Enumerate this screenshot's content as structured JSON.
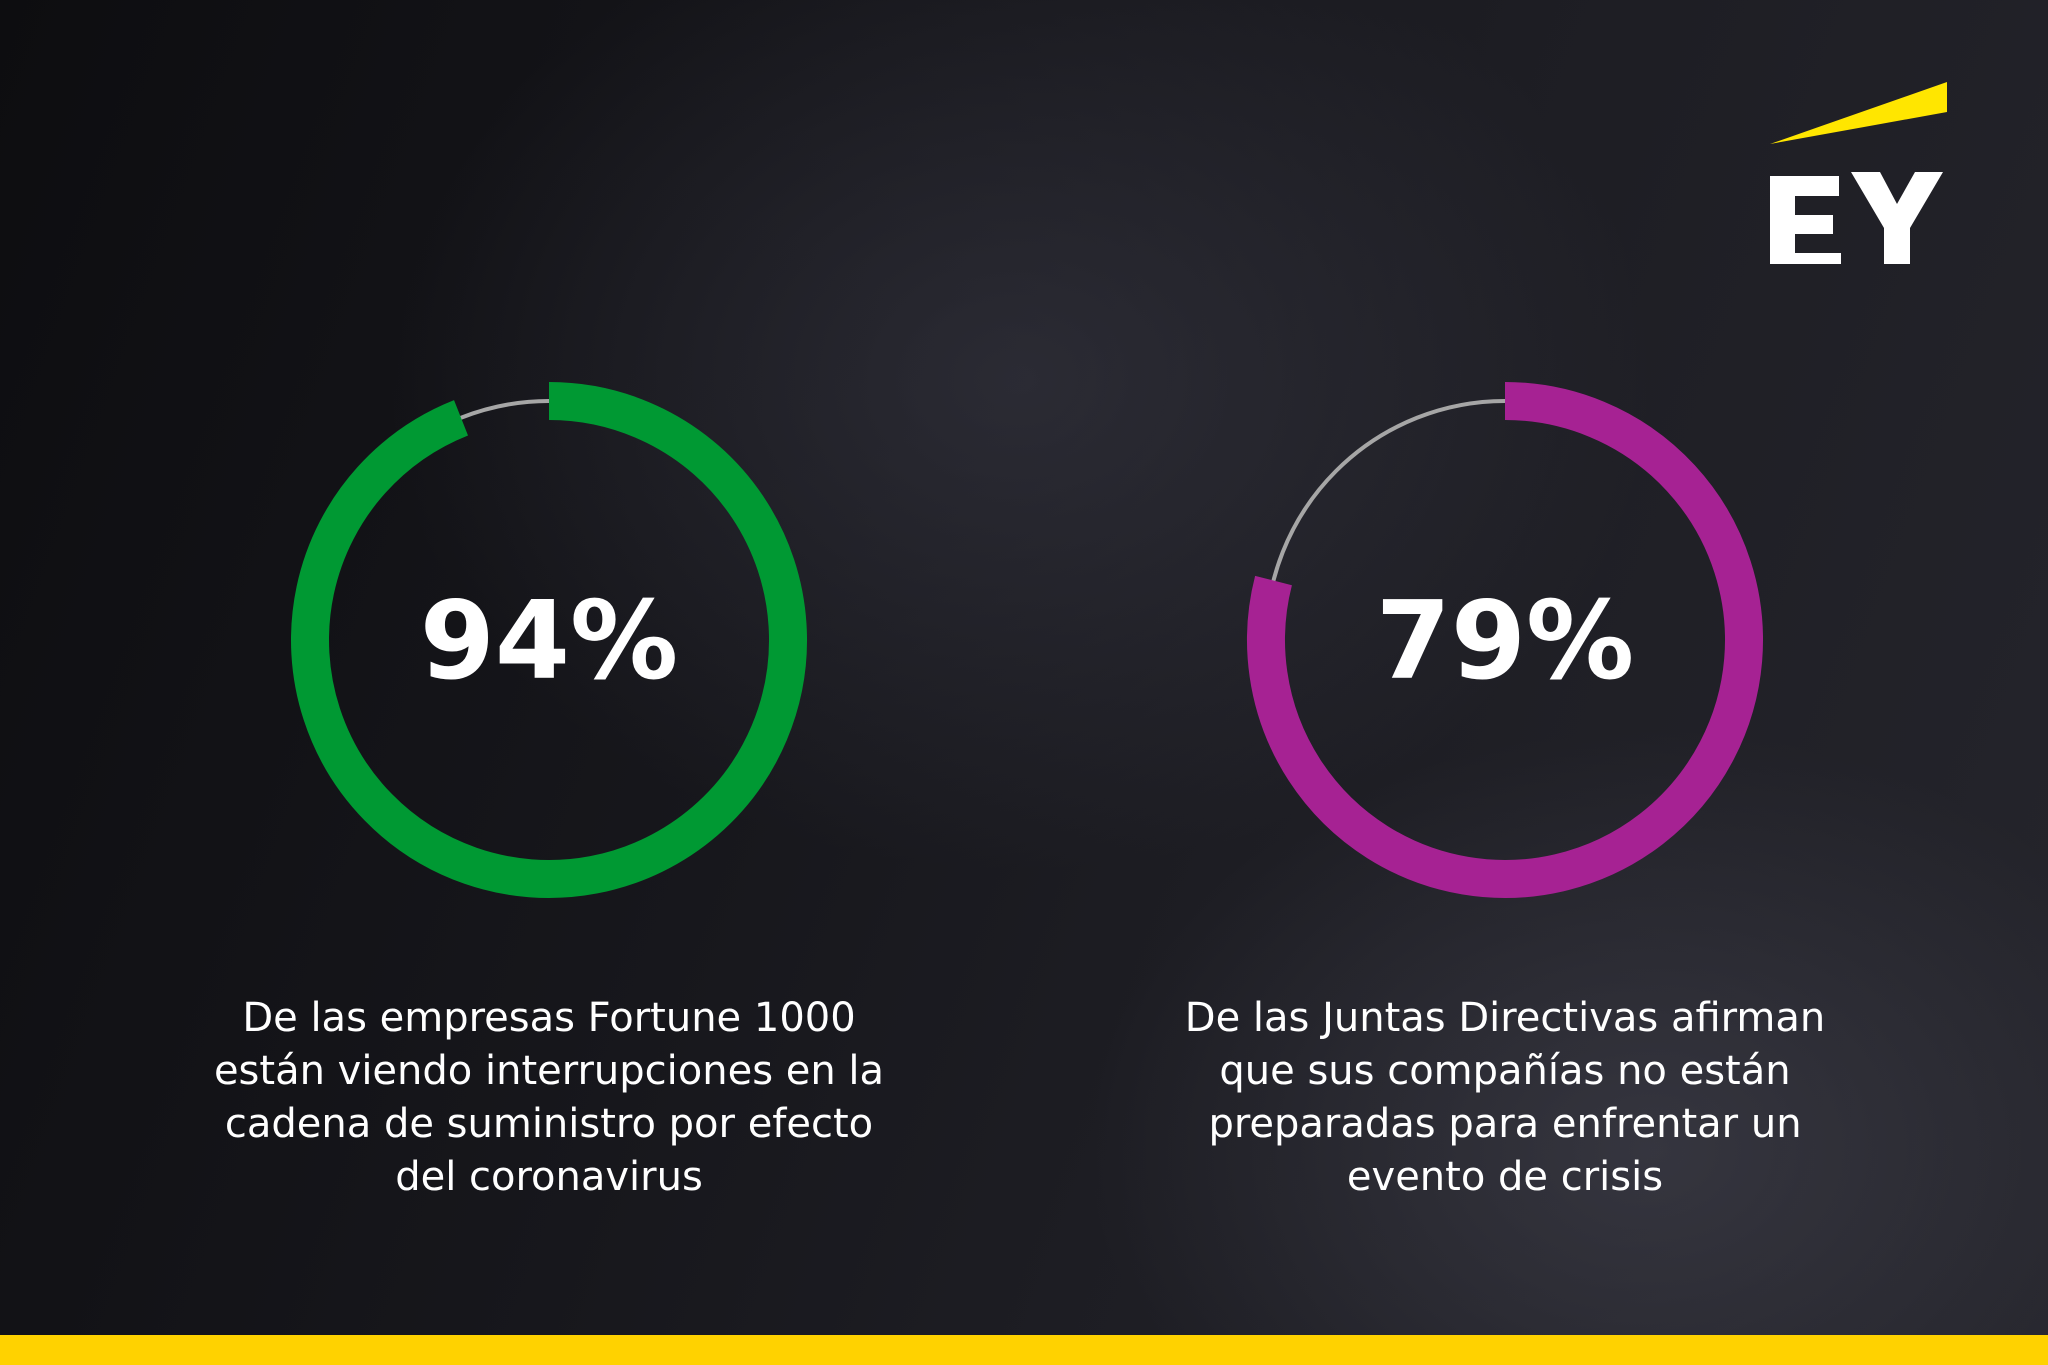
{
  "brand": {
    "logo_text": "EY",
    "accent_color": "#ffe600",
    "bottom_bar_color": "#ffd200"
  },
  "chart_data": [
    {
      "type": "pie",
      "value": 94,
      "value_label": "94%",
      "max": 100,
      "color": "#009933",
      "track_color": "#a6a6a6",
      "caption_lines": [
        "De las empresas Fortune 1000",
        "están viendo interrupciones en la",
        "cadena de suministro por efecto",
        "del coronavirus"
      ]
    },
    {
      "type": "pie",
      "value": 79,
      "value_label": "79%",
      "max": 100,
      "color": "#a62293",
      "track_color": "#a6a6a6",
      "caption_lines": [
        "De las Juntas Directivas afirman",
        "que sus compañías no están",
        "preparadas para enfrentar un",
        "evento de crisis"
      ]
    }
  ]
}
